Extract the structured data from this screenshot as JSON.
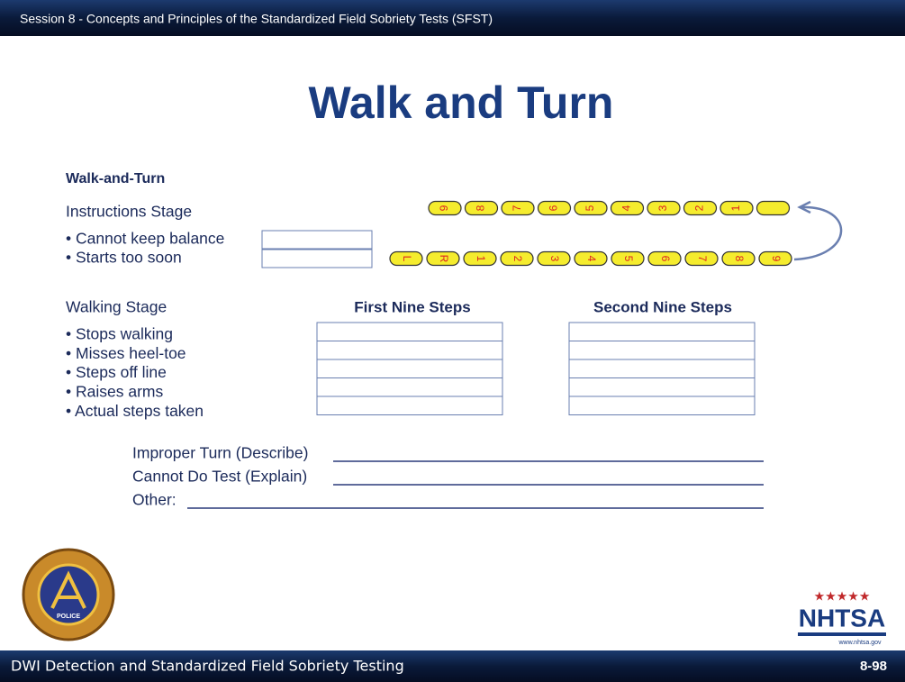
{
  "header": {
    "session": "Session 8 - Concepts and Principles of the Standardized Field Sobriety Tests (SFST)"
  },
  "title": "Walk and Turn",
  "form": {
    "heading": "Walk-and-Turn",
    "instructions": {
      "label": "Instructions Stage",
      "items": [
        "• Cannot keep balance",
        "• Starts too soon"
      ]
    },
    "steps": {
      "top": [
        "9",
        "8",
        "7",
        "6",
        "5",
        "4",
        "3",
        "2",
        "1"
      ],
      "bottom": [
        "L",
        "R",
        "1",
        "2",
        "3",
        "4",
        "5",
        "6",
        "7",
        "8",
        "9"
      ]
    },
    "walking": {
      "label": "Walking Stage",
      "columns": [
        "First Nine Steps",
        "Second Nine Steps"
      ],
      "items": [
        "• Stops walking",
        "• Misses heel-toe",
        "• Steps off line",
        "• Raises arms",
        "• Actual steps taken"
      ]
    },
    "lines": [
      "Improper Turn (Describe)",
      "Cannot Do Test (Explain)",
      "Other:"
    ]
  },
  "logos": {
    "iacp": "POLICE",
    "nhtsa": "NHTSA",
    "nhtsa_url": "www.nhtsa.gov"
  },
  "footer": {
    "course": "DWI Detection and Standardized Field Sobriety Testing",
    "page": "8-98"
  }
}
